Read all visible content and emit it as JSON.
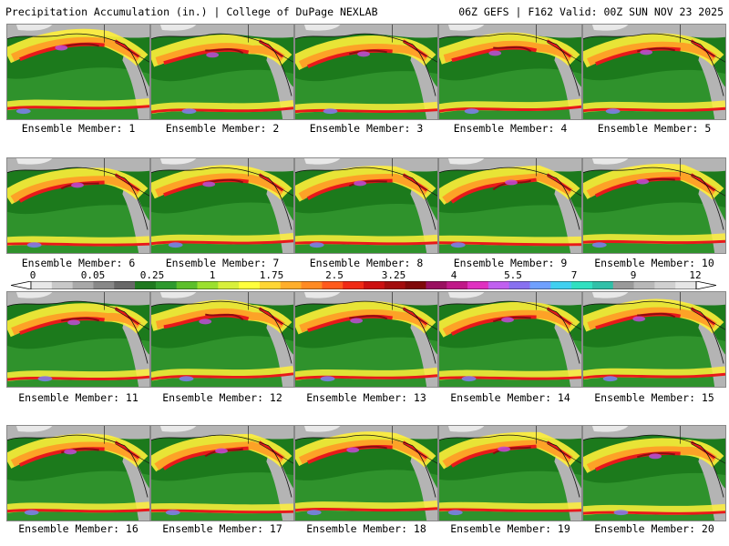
{
  "header": {
    "left_title": "Precipitation Accumulation (in.) | College of DuPage NEXLAB",
    "right_title": "06Z GEFS | F162 Valid: 00Z SUN NOV 23 2025"
  },
  "members": [
    "Ensemble Member: 1",
    "Ensemble Member: 2",
    "Ensemble Member: 3",
    "Ensemble Member: 4",
    "Ensemble Member: 5",
    "Ensemble Member: 6",
    "Ensemble Member: 7",
    "Ensemble Member: 8",
    "Ensemble Member: 9",
    "Ensemble Member: 10",
    "Ensemble Member: 11",
    "Ensemble Member: 12",
    "Ensemble Member: 13",
    "Ensemble Member: 14",
    "Ensemble Member: 15",
    "Ensemble Member: 16",
    "Ensemble Member: 17",
    "Ensemble Member: 18",
    "Ensemble Member: 19",
    "Ensemble Member: 20"
  ],
  "colorbar": {
    "labels": [
      "0",
      "0.05",
      "0.25",
      "1",
      "1.75",
      "2.5",
      "3.25",
      "4",
      "5.5",
      "7",
      "9",
      "12"
    ],
    "colors": [
      "#e8e8e8",
      "#c8c8c8",
      "#a8a8a8",
      "#888888",
      "#686868",
      "#1f7a1f",
      "#2e9a2e",
      "#5cbf2a",
      "#9be02e",
      "#d8f03a",
      "#ffff3c",
      "#ffd633",
      "#ffae2a",
      "#ff8a22",
      "#ff5a1c",
      "#f02a14",
      "#cc1010",
      "#a30d0d",
      "#800a0a",
      "#9a1060",
      "#c01888",
      "#e030c0",
      "#c060f0",
      "#8870f0",
      "#6fa0ff",
      "#40d0f0",
      "#30e0c0",
      "#30c0a8",
      "#9a9a9a",
      "#b8b8b8",
      "#d0d0d0",
      "#e6e6e6"
    ]
  },
  "map_colors": {
    "ocean_base": "#1c7a1c",
    "ocean_light": "#3fa63a",
    "land_gray": "#b4b4b4",
    "land_light": "#e8e8e8",
    "band_yellow": "#fff03a",
    "band_orange": "#ff9a26",
    "band_red": "#e8181a",
    "band_darkred": "#8a0c10",
    "band_purple": "#c04cd8",
    "band_blue": "#7f7ff2",
    "coast": "#111111"
  }
}
